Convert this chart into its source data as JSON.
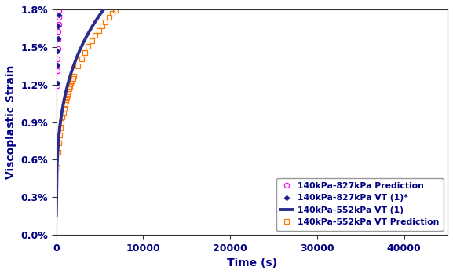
{
  "title": "",
  "xlabel": "Time (s)",
  "ylabel": "Viscoplastic Strain",
  "xlim": [
    0,
    45000
  ],
  "ylim": [
    0.0,
    0.018
  ],
  "yticks": [
    0.0,
    0.003,
    0.006,
    0.009,
    0.012,
    0.015,
    0.018
  ],
  "xticks": [
    0,
    10000,
    20000,
    30000,
    40000
  ],
  "legend": [
    "140kPa-827kPa VT (1)*",
    "140kPa-827kPa Prediction",
    "140kPa-552kPa VT (1)",
    "140kPa-552kPa VT Prediction"
  ],
  "color_827_measured": "#1A1A8C",
  "color_827_pred": "#FF00FF",
  "color_552_measured": "#2C2C8C",
  "color_552_pred": "#FF7700",
  "background": "#FFFFFF",
  "a827": 0.00355,
  "b827": 0.28,
  "a552_meas": 0.00155,
  "b552_meas": 0.285,
  "a552_pred": 0.00145,
  "b552_pred": 0.285
}
